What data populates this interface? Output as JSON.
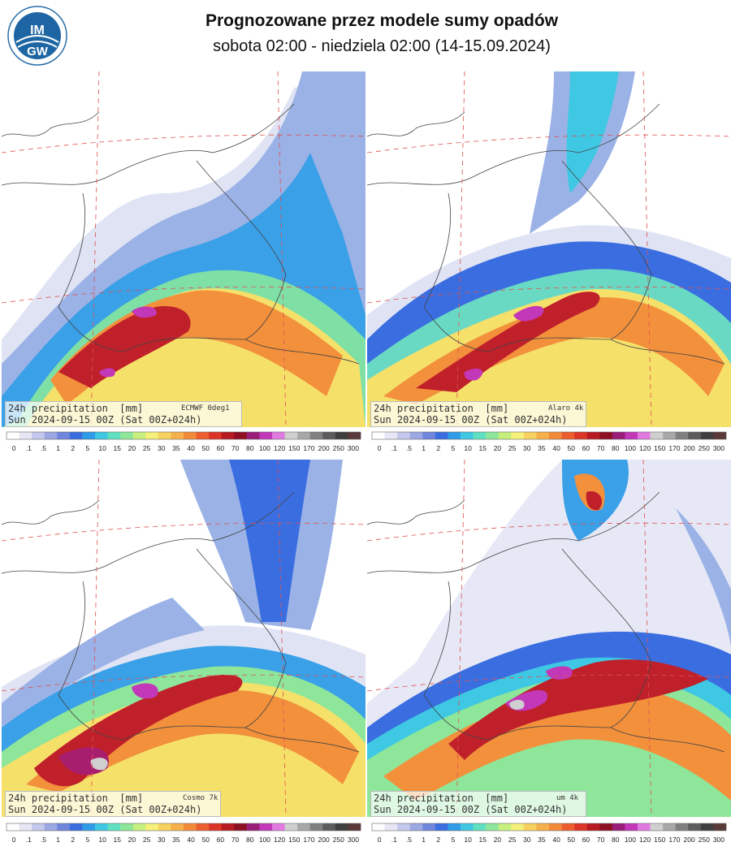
{
  "header": {
    "title": "Prognozowane przez modele sumy opadów",
    "subtitle": "sobota 02:00 - niedziela 02:00 (14-15.09.2024)",
    "logo_text_top": "IM",
    "logo_text_bottom": "GW"
  },
  "panels": [
    {
      "label": "24h precipitation  [mm]",
      "model": "ECMWF 0deg1",
      "valid": "Sun 2024-09-15 00Z (Sat 00Z+024h)"
    },
    {
      "label": "24h precipitation  [mm]",
      "model": "Alaro 4k",
      "valid": "Sun 2024-09-15 00Z (Sat 00Z+024h)"
    },
    {
      "label": "24h precipitation  [mm]",
      "model": "Cosmo 7k",
      "valid": "Sun 2024-09-15 00Z (Sat 00Z+024h)"
    },
    {
      "label": "24h precipitation  [mm]",
      "model": "um 4k",
      "valid": "Sun 2024-09-15 00Z (Sat 00Z+024h)"
    }
  ],
  "legend": {
    "ticks": [
      "0",
      ".1",
      ".5",
      "1",
      "2",
      "5",
      "10",
      "15",
      "20",
      "25",
      "30",
      "35",
      "40",
      "50",
      "60",
      "70",
      "80",
      "100",
      "120",
      "150",
      "170",
      "200",
      "250",
      "300"
    ],
    "colors": [
      "#ffffff",
      "#e6e6f5",
      "#c3c8ec",
      "#9ba8e3",
      "#6f86dc",
      "#3a6ee0",
      "#2f9ce8",
      "#3fc8e3",
      "#5fe0c0",
      "#8ee69a",
      "#c6ef7e",
      "#f5f07a",
      "#f8d25e",
      "#f6b04a",
      "#f28a3a",
      "#ec5e2e",
      "#dc3426",
      "#b81a22",
      "#8f0f22",
      "#9a1e78",
      "#c238b8",
      "#e07ae0",
      "#cfcfcf",
      "#a8a8a8",
      "#808080",
      "#5c5c5c",
      "#3f3f3f",
      "#5a3a38"
    ]
  }
}
